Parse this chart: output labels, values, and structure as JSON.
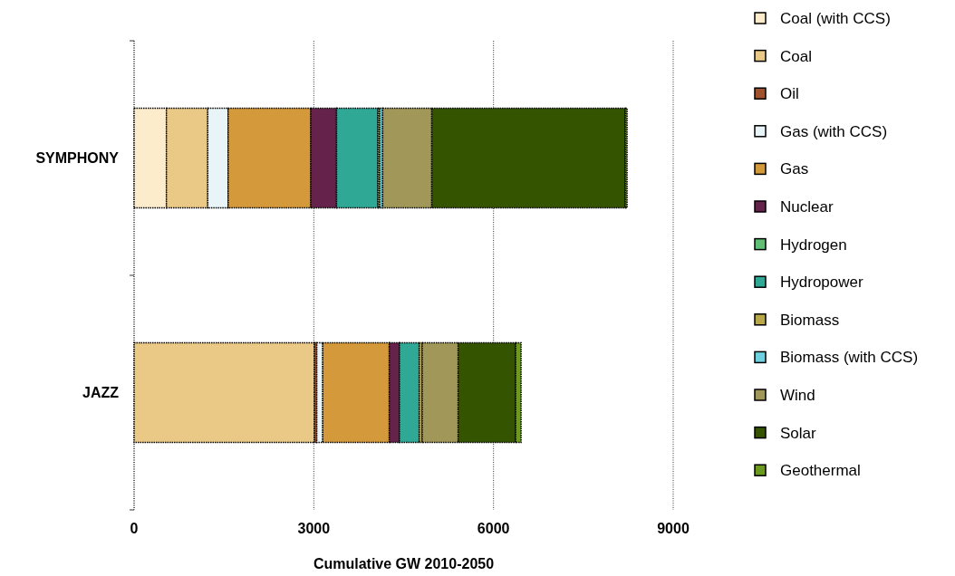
{
  "chart_data": {
    "type": "bar",
    "orientation": "horizontal",
    "stacked": true,
    "xlabel": "Cumulative GW 2010-2050",
    "categories": [
      "SYMPHONY",
      "JAZZ"
    ],
    "xlim": [
      0,
      9000
    ],
    "xticks": [
      0,
      3000,
      6000,
      9000
    ],
    "grid": "x",
    "legend": "right",
    "series": [
      {
        "name": "Coal (with CCS)",
        "color": "#fdeccc",
        "values": [
          540,
          0
        ]
      },
      {
        "name": "Coal",
        "color": "#eac987",
        "values": [
          690,
          3010
        ]
      },
      {
        "name": "Oil",
        "color": "#a0522d",
        "values": [
          0,
          40
        ]
      },
      {
        "name": "Gas (with CCS)",
        "color": "#e8f4f8",
        "values": [
          340,
          100
        ]
      },
      {
        "name": "Gas",
        "color": "#d4993a",
        "values": [
          1380,
          1110
        ]
      },
      {
        "name": "Nuclear",
        "color": "#65234b",
        "values": [
          430,
          170
        ]
      },
      {
        "name": "Hydrogen",
        "color": "#5fbf74",
        "values": [
          0,
          0
        ]
      },
      {
        "name": "Hydropower",
        "color": "#2fa896",
        "values": [
          690,
          330
        ]
      },
      {
        "name": "Biomass",
        "color": "#b8a84a",
        "values": [
          30,
          50
        ]
      },
      {
        "name": "Biomass (with CCS)",
        "color": "#6fd0e0",
        "values": [
          50,
          0
        ]
      },
      {
        "name": "Wind",
        "color": "#a09759",
        "values": [
          820,
          600
        ]
      },
      {
        "name": "Solar",
        "color": "#355400",
        "values": [
          3230,
          960
        ]
      },
      {
        "name": "Geothermal",
        "color": "#6b9a1e",
        "values": [
          30,
          90
        ]
      }
    ]
  }
}
